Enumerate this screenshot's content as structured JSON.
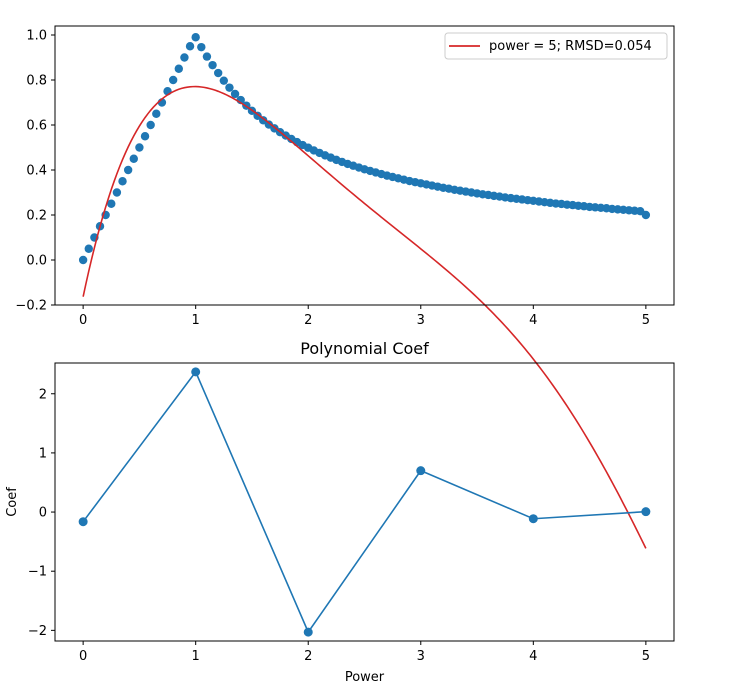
{
  "chart_data": [
    {
      "type": "scatter",
      "title": "",
      "xlabel": "",
      "ylabel": "",
      "xlim": [
        -0.25,
        5.25
      ],
      "ylim": [
        -0.2,
        1.04
      ],
      "xticks": [
        0,
        1,
        2,
        3,
        4,
        5
      ],
      "xtick_labels": [
        "0",
        "1",
        "2",
        "3",
        "4",
        "5"
      ],
      "yticks": [
        -0.2,
        0.0,
        0.2,
        0.4,
        0.6,
        0.8,
        1.0
      ],
      "ytick_labels": [
        "−0.2",
        "0.0",
        "0.2",
        "0.4",
        "0.6",
        "0.8",
        "1.0"
      ],
      "grid": false,
      "legend_position": "top-right",
      "points": {
        "color": "#1f77b4",
        "x": [
          0.0,
          0.05,
          0.1,
          0.15,
          0.2,
          0.25,
          0.3,
          0.35,
          0.4,
          0.45,
          0.5,
          0.55,
          0.6,
          0.65,
          0.7,
          0.75,
          0.8,
          0.85,
          0.9,
          0.95,
          1.0,
          1.05,
          1.1,
          1.15,
          1.2,
          1.25,
          1.3,
          1.35,
          1.4,
          1.45,
          1.5,
          1.55,
          1.6,
          1.65,
          1.7,
          1.75,
          1.8,
          1.85,
          1.9,
          1.95,
          2.0,
          2.05,
          2.1,
          2.15,
          2.2,
          2.25,
          2.3,
          2.35,
          2.4,
          2.45,
          2.5,
          2.55,
          2.6,
          2.65,
          2.7,
          2.75,
          2.8,
          2.85,
          2.9,
          2.95,
          3.0,
          3.05,
          3.1,
          3.15,
          3.2,
          3.25,
          3.3,
          3.35,
          3.4,
          3.45,
          3.5,
          3.55,
          3.6,
          3.65,
          3.7,
          3.75,
          3.8,
          3.85,
          3.9,
          3.95,
          4.0,
          4.05,
          4.1,
          4.15,
          4.2,
          4.25,
          4.3,
          4.35,
          4.4,
          4.45,
          4.5,
          4.55,
          4.6,
          4.65,
          4.7,
          4.75,
          4.8,
          4.85,
          4.9,
          4.95,
          5.0
        ],
        "y": [
          0.0,
          0.05,
          0.1,
          0.15,
          0.2,
          0.25,
          0.3,
          0.35,
          0.4,
          0.45,
          0.5,
          0.55,
          0.6,
          0.65,
          0.7,
          0.75,
          0.8,
          0.85,
          0.9,
          0.95,
          0.99,
          0.946,
          0.904,
          0.866,
          0.831,
          0.797,
          0.766,
          0.738,
          0.711,
          0.686,
          0.663,
          0.641,
          0.621,
          0.602,
          0.585,
          0.568,
          0.553,
          0.538,
          0.524,
          0.511,
          0.499,
          0.487,
          0.476,
          0.465,
          0.455,
          0.445,
          0.436,
          0.427,
          0.419,
          0.411,
          0.403,
          0.396,
          0.389,
          0.382,
          0.375,
          0.369,
          0.363,
          0.357,
          0.351,
          0.346,
          0.341,
          0.336,
          0.331,
          0.326,
          0.321,
          0.317,
          0.312,
          0.308,
          0.304,
          0.3,
          0.296,
          0.292,
          0.289,
          0.285,
          0.282,
          0.278,
          0.275,
          0.272,
          0.269,
          0.266,
          0.263,
          0.26,
          0.257,
          0.254,
          0.251,
          0.249,
          0.246,
          0.244,
          0.241,
          0.239,
          0.236,
          0.234,
          0.232,
          0.23,
          0.227,
          0.225,
          0.223,
          0.221,
          0.219,
          0.217,
          0.2
        ]
      },
      "fit_line": {
        "name": "power = 5; RMSD=0.054",
        "color": "#d62728",
        "coefficients": [
          -0.163,
          2.37,
          -2.03,
          0.7,
          -0.113,
          0.00669
        ]
      }
    },
    {
      "type": "line",
      "title": "Polynomial Coef",
      "xlabel": "Power",
      "ylabel": "Coef",
      "xlim": [
        -0.25,
        5.25
      ],
      "ylim": [
        -2.18,
        2.52
      ],
      "xticks": [
        0,
        1,
        2,
        3,
        4,
        5
      ],
      "xtick_labels": [
        "0",
        "1",
        "2",
        "3",
        "4",
        "5"
      ],
      "yticks": [
        -2,
        -1,
        0,
        1,
        2
      ],
      "ytick_labels": [
        "−2",
        "−1",
        "0",
        "1",
        "2"
      ],
      "grid": false,
      "series": {
        "color": "#1f77b4",
        "x": [
          0,
          1,
          2,
          3,
          4,
          5
        ],
        "y": [
          -0.163,
          2.37,
          -2.03,
          0.7,
          -0.113,
          0.00669
        ]
      }
    }
  ]
}
